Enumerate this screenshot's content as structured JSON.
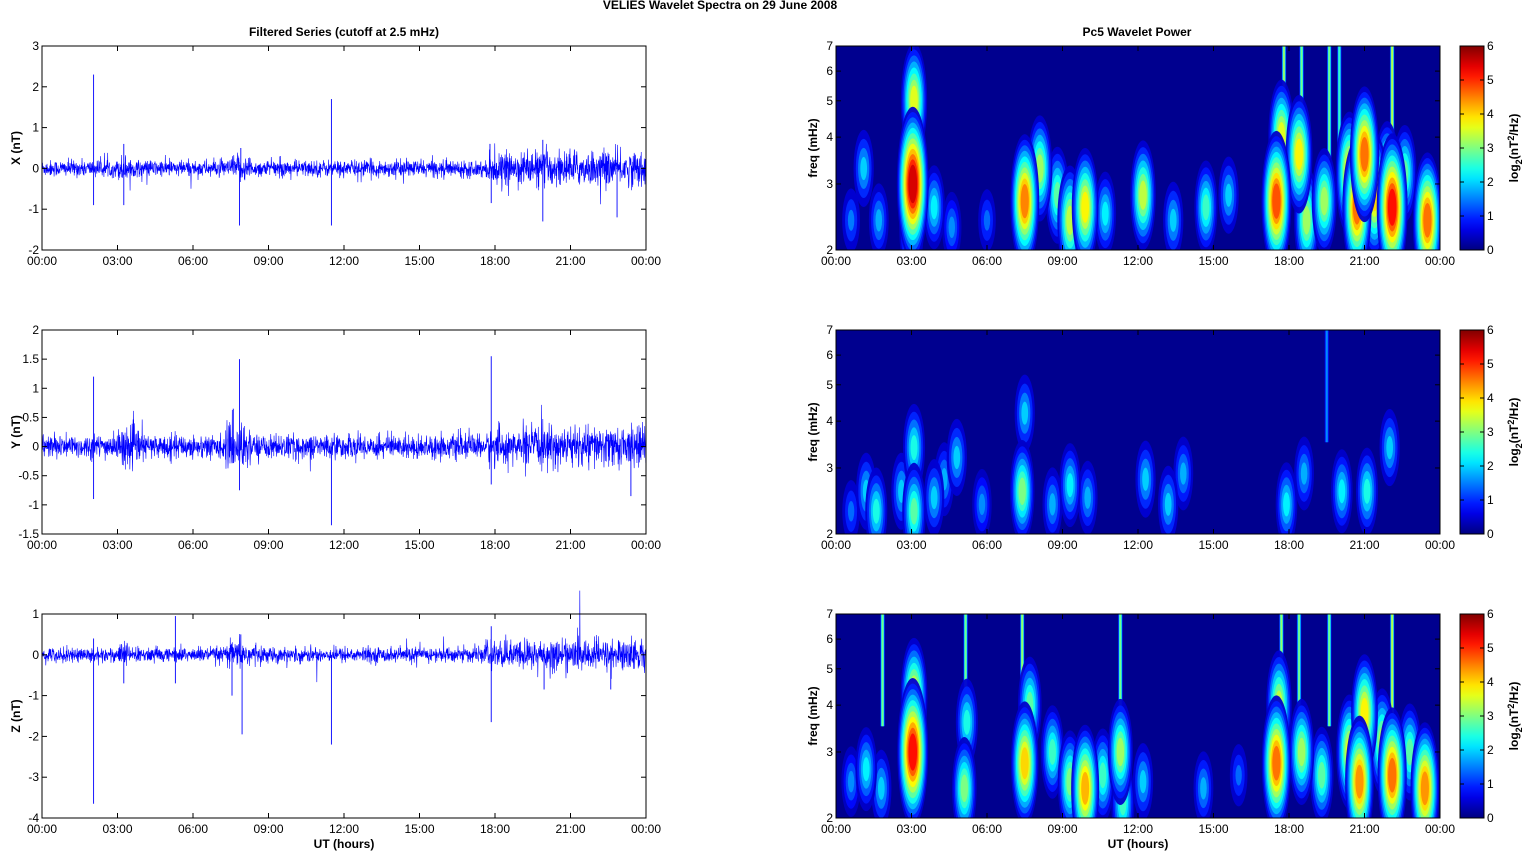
{
  "figure_title": "VELIES Wavelet Spectra on 29 June      2008",
  "left_title": "Filtered Series (cutoff at 2.5 mHz)",
  "right_title": "Pc5 Wavelet Power",
  "colorbar_label_main": "log",
  "colorbar_label_sub": "2",
  "colorbar_label_paren": "(nT",
  "colorbar_label_sup": "2",
  "colorbar_label_end": "/Hz)",
  "colors": {
    "trace": "#0000ff",
    "background": "#00008f"
  },
  "chart_data": [
    {
      "type": "line",
      "series": [
        {
          "name": "X",
          "noise_std": 0.1
        }
      ],
      "ylabel": "X (nT)",
      "xlabel": "",
      "ylim": [
        -2,
        3
      ],
      "yticks": [
        "-2",
        "-1",
        "0",
        "1",
        "2",
        "3"
      ],
      "xticks": [
        "00:00",
        "03:00",
        "06:00",
        "09:00",
        "12:00",
        "15:00",
        "18:00",
        "21:00",
        "00:00"
      ],
      "spikes": [
        [
          2.05,
          2.3
        ],
        [
          2.05,
          -0.9
        ],
        [
          3.25,
          0.6
        ],
        [
          3.25,
          -0.9
        ],
        [
          7.85,
          -1.4
        ],
        [
          7.9,
          0.5
        ],
        [
          11.5,
          1.7
        ],
        [
          11.5,
          -1.4
        ],
        [
          17.85,
          -0.85
        ],
        [
          17.8,
          0.6
        ],
        [
          19.9,
          -1.3
        ],
        [
          19.9,
          0.7
        ],
        [
          22.85,
          -1.2
        ],
        [
          24.0,
          0.7
        ]
      ],
      "bursts": [
        [
          3.0,
          3.6,
          1.6
        ],
        [
          7.5,
          8.3,
          1.6
        ],
        [
          17.7,
          19.0,
          1.8
        ],
        [
          19.0,
          24.0,
          2.1
        ]
      ]
    },
    {
      "type": "line",
      "series": [
        {
          "name": "Y",
          "noise_std": 0.1
        }
      ],
      "ylabel": "Y (nT)",
      "xlabel": "",
      "ylim": [
        -1.5,
        2
      ],
      "yticks": [
        "-1.5",
        "-1",
        "-0.5",
        "0",
        "0.5",
        "1",
        "1.5",
        "2"
      ],
      "xticks": [
        "00:00",
        "03:00",
        "06:00",
        "09:00",
        "12:00",
        "15:00",
        "18:00",
        "21:00",
        "00:00"
      ],
      "spikes": [
        [
          2.05,
          1.2
        ],
        [
          2.05,
          -0.9
        ],
        [
          7.85,
          1.5
        ],
        [
          7.85,
          -0.75
        ],
        [
          7.6,
          0.65
        ],
        [
          11.5,
          -1.35
        ],
        [
          17.85,
          1.55
        ],
        [
          17.85,
          -0.65
        ],
        [
          23.4,
          -0.85
        ],
        [
          24.0,
          0.5
        ]
      ],
      "bursts": [
        [
          3.0,
          4.0,
          1.6
        ],
        [
          7.3,
          8.3,
          1.9
        ],
        [
          17.7,
          18.6,
          1.6
        ],
        [
          19.0,
          24.0,
          1.7
        ]
      ]
    },
    {
      "type": "line",
      "series": [
        {
          "name": "Z",
          "noise_std": 0.09
        }
      ],
      "ylabel": "Z (nT)",
      "xlabel": "UT (hours)",
      "ylim": [
        -4,
        1
      ],
      "yticks": [
        "-4",
        "-3",
        "-2",
        "-1",
        "0",
        "1"
      ],
      "xticks": [
        "00:00",
        "03:00",
        "06:00",
        "09:00",
        "12:00",
        "15:00",
        "18:00",
        "21:00",
        "00:00"
      ],
      "spikes": [
        [
          2.05,
          -3.65
        ],
        [
          2.05,
          0.4
        ],
        [
          3.25,
          -0.7
        ],
        [
          5.3,
          0.95
        ],
        [
          5.3,
          -0.7
        ],
        [
          7.55,
          -1.0
        ],
        [
          7.95,
          -1.95
        ],
        [
          7.9,
          0.5
        ],
        [
          11.5,
          -2.2
        ],
        [
          17.85,
          -1.65
        ],
        [
          17.85,
          0.7
        ],
        [
          19.95,
          -0.85
        ],
        [
          22.6,
          -0.85
        ],
        [
          24.0,
          0.8
        ]
      ],
      "bursts": [
        [
          3.0,
          3.5,
          1.6
        ],
        [
          7.3,
          8.5,
          1.8
        ],
        [
          17.6,
          19.0,
          1.8
        ],
        [
          19.0,
          24.0,
          2.1
        ]
      ]
    },
    {
      "type": "heatmap",
      "title": "Pc5 Wavelet Power",
      "ylabel": "freq (mHz)",
      "xlabel": "",
      "ylim": [
        2,
        7
      ],
      "yscale": "log",
      "yticks": [
        "2",
        "3",
        "4",
        "5",
        "6",
        "7"
      ],
      "xticks": [
        "00:00",
        "03:00",
        "06:00",
        "09:00",
        "12:00",
        "15:00",
        "18:00",
        "21:00",
        "00:00"
      ],
      "clim": [
        0,
        6
      ],
      "colorbar_ticks": [
        "0",
        "1",
        "2",
        "3",
        "4",
        "5",
        "6"
      ],
      "blobs": [
        [
          0.6,
          2.4,
          1.5
        ],
        [
          1.1,
          3.3,
          2.0
        ],
        [
          1.7,
          2.4,
          1.8
        ],
        [
          3.05,
          3.0,
          5.5
        ],
        [
          3.1,
          5.0,
          3.6
        ],
        [
          3.0,
          2.3,
          3.0
        ],
        [
          3.9,
          2.6,
          2.2
        ],
        [
          4.6,
          2.3,
          1.6
        ],
        [
          6.0,
          2.4,
          1.4
        ],
        [
          7.5,
          2.7,
          4.5
        ],
        [
          8.1,
          3.3,
          3.2
        ],
        [
          8.8,
          2.8,
          2.8
        ],
        [
          9.3,
          2.4,
          3.4
        ],
        [
          9.9,
          2.6,
          3.8
        ],
        [
          10.7,
          2.5,
          2.2
        ],
        [
          12.2,
          2.8,
          3.4
        ],
        [
          13.4,
          2.4,
          2.0
        ],
        [
          14.7,
          2.6,
          2.6
        ],
        [
          15.6,
          2.8,
          2.0
        ],
        [
          17.5,
          2.7,
          4.8
        ],
        [
          17.7,
          4.0,
          3.6
        ],
        [
          18.4,
          3.6,
          3.8
        ],
        [
          18.7,
          2.4,
          3.2
        ],
        [
          19.4,
          2.7,
          3.2
        ],
        [
          20.4,
          3.2,
          4.0
        ],
        [
          20.7,
          2.6,
          4.6
        ],
        [
          21.0,
          3.6,
          4.6
        ],
        [
          21.4,
          2.8,
          4.0
        ],
        [
          21.9,
          3.1,
          3.6
        ],
        [
          22.1,
          2.6,
          5.2
        ],
        [
          22.6,
          3.2,
          2.8
        ],
        [
          23.5,
          2.4,
          4.6
        ]
      ],
      "streaks": [
        [
          3.05,
          3.0
        ],
        [
          17.8,
          3.2
        ],
        [
          18.5,
          3.0
        ],
        [
          19.6,
          3.0
        ],
        [
          22.1,
          3.4
        ],
        [
          20.0,
          2.6
        ]
      ]
    },
    {
      "type": "heatmap",
      "title": "",
      "ylabel": "freq (mHz)",
      "xlabel": "",
      "ylim": [
        2,
        7
      ],
      "yscale": "log",
      "yticks": [
        "2",
        "3",
        "4",
        "5",
        "6",
        "7"
      ],
      "xticks": [
        "00:00",
        "03:00",
        "06:00",
        "09:00",
        "12:00",
        "15:00",
        "18:00",
        "21:00",
        "00:00"
      ],
      "clim": [
        0,
        6
      ],
      "colorbar_ticks": [
        "0",
        "1",
        "2",
        "3",
        "4",
        "5",
        "6"
      ],
      "blobs": [
        [
          0.6,
          2.3,
          1.4
        ],
        [
          1.2,
          2.6,
          2.0
        ],
        [
          1.6,
          2.3,
          2.4
        ],
        [
          2.6,
          2.6,
          2.0
        ],
        [
          3.1,
          2.3,
          2.8
        ],
        [
          3.1,
          3.4,
          2.4
        ],
        [
          3.9,
          2.5,
          2.0
        ],
        [
          4.3,
          2.8,
          1.8
        ],
        [
          4.8,
          3.2,
          2.0
        ],
        [
          5.8,
          2.4,
          1.6
        ],
        [
          7.4,
          2.6,
          3.0
        ],
        [
          7.5,
          4.2,
          2.0
        ],
        [
          8.6,
          2.4,
          1.8
        ],
        [
          9.3,
          2.7,
          2.2
        ],
        [
          10.0,
          2.5,
          1.8
        ],
        [
          12.3,
          2.8,
          2.0
        ],
        [
          13.2,
          2.4,
          2.0
        ],
        [
          13.8,
          2.9,
          1.8
        ],
        [
          17.9,
          2.4,
          2.2
        ],
        [
          18.6,
          2.9,
          1.8
        ],
        [
          20.1,
          2.6,
          2.2
        ],
        [
          21.1,
          2.6,
          2.4
        ],
        [
          22.0,
          3.4,
          2.0
        ]
      ],
      "streaks": [
        [
          19.5,
          1.6
        ]
      ]
    },
    {
      "type": "heatmap",
      "title": "",
      "ylabel": "freq (mHz)",
      "xlabel": "UT (hours)",
      "ylim": [
        2,
        7
      ],
      "yscale": "log",
      "yticks": [
        "2",
        "3",
        "4",
        "5",
        "6",
        "7"
      ],
      "xticks": [
        "00:00",
        "03:00",
        "06:00",
        "09:00",
        "12:00",
        "15:00",
        "18:00",
        "21:00",
        "00:00"
      ],
      "clim": [
        0,
        6
      ],
      "colorbar_ticks": [
        "0",
        "1",
        "2",
        "3",
        "4",
        "5",
        "6"
      ],
      "blobs": [
        [
          0.6,
          2.5,
          1.6
        ],
        [
          1.2,
          2.7,
          2.2
        ],
        [
          1.8,
          2.4,
          2.0
        ],
        [
          3.05,
          3.0,
          5.2
        ],
        [
          3.1,
          4.2,
          3.8
        ],
        [
          5.1,
          2.4,
          3.0
        ],
        [
          5.2,
          3.6,
          2.4
        ],
        [
          7.5,
          2.8,
          4.0
        ],
        [
          7.7,
          4.0,
          2.8
        ],
        [
          8.6,
          3.0,
          2.6
        ],
        [
          9.3,
          2.5,
          3.0
        ],
        [
          9.9,
          2.4,
          4.2
        ],
        [
          10.6,
          2.6,
          2.6
        ],
        [
          11.3,
          3.0,
          3.2
        ],
        [
          11.4,
          2.2,
          2.6
        ],
        [
          12.2,
          2.5,
          2.0
        ],
        [
          14.6,
          2.4,
          1.8
        ],
        [
          16.0,
          2.6,
          1.4
        ],
        [
          17.5,
          2.8,
          4.6
        ],
        [
          17.6,
          4.0,
          3.4
        ],
        [
          18.5,
          3.0,
          3.2
        ],
        [
          19.3,
          2.6,
          2.8
        ],
        [
          20.4,
          3.0,
          3.6
        ],
        [
          20.8,
          2.5,
          4.4
        ],
        [
          21.0,
          3.8,
          3.8
        ],
        [
          21.7,
          3.2,
          3.2
        ],
        [
          22.1,
          2.6,
          4.6
        ],
        [
          22.8,
          3.0,
          2.8
        ],
        [
          23.4,
          2.4,
          4.4
        ]
      ],
      "streaks": [
        [
          1.85,
          3.0
        ],
        [
          5.15,
          3.0
        ],
        [
          7.4,
          3.2
        ],
        [
          11.3,
          3.0
        ],
        [
          17.7,
          3.2
        ],
        [
          18.4,
          3.0
        ],
        [
          19.6,
          3.0
        ],
        [
          22.1,
          3.4
        ]
      ]
    }
  ]
}
